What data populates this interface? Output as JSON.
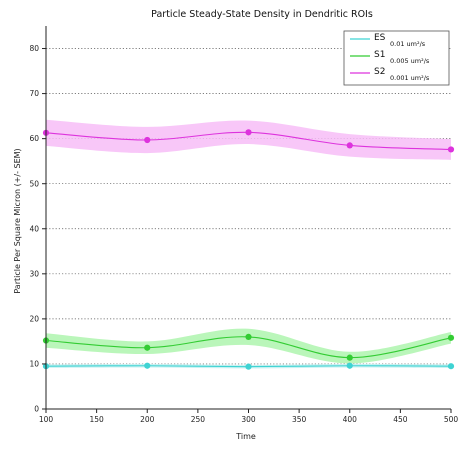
{
  "chart_data": {
    "type": "line",
    "title": "Particle Steady-State Density in Dendritic ROIs",
    "xlabel": "Time",
    "ylabel": "Particle Per Square Micron (+/- SEM)",
    "xlim": [
      100,
      500
    ],
    "ylim": [
      0,
      85
    ],
    "x_ticks": [
      100,
      150,
      200,
      250,
      300,
      350,
      400,
      450,
      500
    ],
    "y_ticks": [
      0,
      10,
      20,
      30,
      40,
      50,
      60,
      70,
      80
    ],
    "grid": "horizontal-dotted",
    "legend_position": "top-right",
    "series": [
      {
        "name": "ES",
        "rate": "0.01 um²/s",
        "color": "#3fd3d3",
        "band_color": "#bff0f0",
        "x": [
          100,
          200,
          300,
          400,
          500
        ],
        "y": [
          9.5,
          9.6,
          9.4,
          9.6,
          9.5
        ],
        "sem": [
          0.4,
          0.4,
          0.4,
          0.4,
          0.4
        ]
      },
      {
        "name": "S1",
        "rate": "0.005 um²/s",
        "color": "#33cc33",
        "band_color": "#aef5ae",
        "x": [
          100,
          200,
          300,
          400,
          500
        ],
        "y": [
          15.2,
          13.6,
          16.0,
          11.4,
          15.8
        ],
        "sem": [
          1.6,
          1.4,
          1.8,
          1.3,
          1.3
        ]
      },
      {
        "name": "S2",
        "rate": "0.001 um²/s",
        "color": "#dd33dd",
        "band_color": "#f7bdf7",
        "x": [
          100,
          200,
          300,
          400,
          500
        ],
        "y": [
          61.3,
          59.7,
          61.4,
          58.5,
          57.6
        ],
        "sem": [
          2.9,
          2.9,
          2.6,
          2.5,
          2.3
        ]
      }
    ]
  }
}
